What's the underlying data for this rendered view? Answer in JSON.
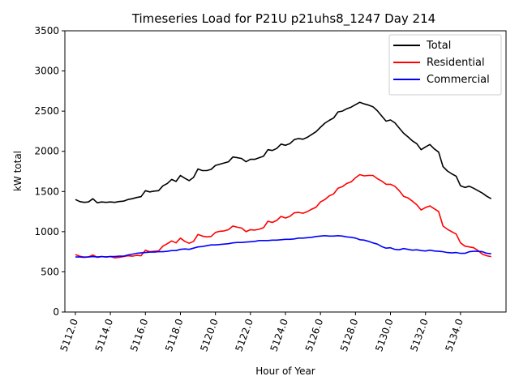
{
  "chart_data": {
    "type": "line",
    "title": "Timeseries Load for P21U p21uhs8_1247  Day 214",
    "xlabel": "Hour of Year",
    "ylabel": "kW total",
    "xlim": [
      5111.4,
      5136.6
    ],
    "ylim": [
      0,
      3500
    ],
    "xticks": [
      5112,
      5114,
      5116,
      5118,
      5120,
      5122,
      5124,
      5126,
      5128,
      5130,
      5132,
      5134
    ],
    "xtick_labels": [
      "5112.0",
      "5114.0",
      "5116.0",
      "5118.0",
      "5120.0",
      "5122.0",
      "5124.0",
      "5126.0",
      "5128.0",
      "5130.0",
      "5132.0",
      "5134.0"
    ],
    "yticks": [
      0,
      500,
      1000,
      1500,
      2000,
      2500,
      3000,
      3500
    ],
    "ytick_labels": [
      "0",
      "500",
      "1000",
      "1500",
      "2000",
      "2500",
      "3000",
      "3500"
    ],
    "grid": false,
    "legend_position": "top-right",
    "series": [
      {
        "name": "Total",
        "color": "#000000",
        "x": [
          5112.0,
          5112.25,
          5112.5,
          5112.75,
          5113.0,
          5113.25,
          5113.5,
          5113.75,
          5114.0,
          5114.25,
          5114.5,
          5114.75,
          5115.0,
          5115.25,
          5115.5,
          5115.75,
          5116.0,
          5116.25,
          5116.5,
          5116.75,
          5117.0,
          5117.25,
          5117.5,
          5117.75,
          5118.0,
          5118.25,
          5118.5,
          5118.75,
          5119.0,
          5119.25,
          5119.5,
          5119.75,
          5120.0,
          5120.25,
          5120.5,
          5120.75,
          5121.0,
          5121.25,
          5121.5,
          5121.75,
          5122.0,
          5122.25,
          5122.5,
          5122.75,
          5123.0,
          5123.25,
          5123.5,
          5123.75,
          5124.0,
          5124.25,
          5124.5,
          5124.75,
          5125.0,
          5125.25,
          5125.5,
          5125.75,
          5126.0,
          5126.25,
          5126.5,
          5126.75,
          5127.0,
          5127.25,
          5127.5,
          5127.75,
          5128.0,
          5128.25,
          5128.5,
          5128.75,
          5129.0,
          5129.25,
          5129.5,
          5129.75,
          5130.0,
          5130.25,
          5130.5,
          5130.75,
          5131.0,
          5131.25,
          5131.5,
          5131.75,
          5132.0,
          5132.25,
          5132.5,
          5132.75,
          5133.0,
          5133.25,
          5133.5,
          5133.75,
          5134.0,
          5134.25,
          5134.5,
          5134.75,
          5135.0,
          5135.25,
          5135.5,
          5135.75
        ],
        "values": [
          1400,
          1375,
          1365,
          1370,
          1410,
          1360,
          1370,
          1365,
          1370,
          1365,
          1375,
          1380,
          1400,
          1410,
          1425,
          1435,
          1510,
          1495,
          1505,
          1510,
          1570,
          1600,
          1650,
          1625,
          1700,
          1665,
          1635,
          1675,
          1780,
          1760,
          1760,
          1775,
          1825,
          1840,
          1855,
          1870,
          1930,
          1920,
          1910,
          1870,
          1900,
          1900,
          1920,
          1940,
          2020,
          2010,
          2035,
          2090,
          2075,
          2095,
          2145,
          2160,
          2150,
          2175,
          2210,
          2245,
          2300,
          2350,
          2385,
          2415,
          2490,
          2500,
          2530,
          2550,
          2580,
          2610,
          2590,
          2575,
          2555,
          2505,
          2440,
          2375,
          2390,
          2355,
          2290,
          2225,
          2180,
          2130,
          2095,
          2020,
          2055,
          2085,
          2030,
          1990,
          1810,
          1755,
          1720,
          1690,
          1570,
          1550,
          1565,
          1540,
          1510,
          1480,
          1440,
          1410
        ]
      },
      {
        "name": "Residential",
        "color": "#ff0000",
        "x": [
          5112.0,
          5112.25,
          5112.5,
          5112.75,
          5113.0,
          5113.25,
          5113.5,
          5113.75,
          5114.0,
          5114.25,
          5114.5,
          5114.75,
          5115.0,
          5115.25,
          5115.5,
          5115.75,
          5116.0,
          5116.25,
          5116.5,
          5116.75,
          5117.0,
          5117.25,
          5117.5,
          5117.75,
          5118.0,
          5118.25,
          5118.5,
          5118.75,
          5119.0,
          5119.25,
          5119.5,
          5119.75,
          5120.0,
          5120.25,
          5120.5,
          5120.75,
          5121.0,
          5121.25,
          5121.5,
          5121.75,
          5122.0,
          5122.25,
          5122.5,
          5122.75,
          5123.0,
          5123.25,
          5123.5,
          5123.75,
          5124.0,
          5124.25,
          5124.5,
          5124.75,
          5125.0,
          5125.25,
          5125.5,
          5125.75,
          5126.0,
          5126.25,
          5126.5,
          5126.75,
          5127.0,
          5127.25,
          5127.5,
          5127.75,
          5128.0,
          5128.25,
          5128.5,
          5128.75,
          5129.0,
          5129.25,
          5129.5,
          5129.75,
          5130.0,
          5130.25,
          5130.5,
          5130.75,
          5131.0,
          5131.25,
          5131.5,
          5131.75,
          5132.0,
          5132.25,
          5132.5,
          5132.75,
          5133.0,
          5133.25,
          5133.5,
          5133.75,
          5134.0,
          5134.25,
          5134.5,
          5134.75,
          5135.0,
          5135.25,
          5135.5,
          5135.75
        ],
        "values": [
          715,
          695,
          685,
          685,
          710,
          680,
          690,
          685,
          690,
          675,
          680,
          690,
          700,
          695,
          705,
          700,
          770,
          750,
          755,
          760,
          820,
          850,
          885,
          860,
          920,
          880,
          855,
          880,
          965,
          945,
          935,
          940,
          990,
          1005,
          1010,
          1025,
          1070,
          1055,
          1045,
          1000,
          1025,
          1020,
          1030,
          1050,
          1130,
          1115,
          1140,
          1190,
          1170,
          1190,
          1235,
          1240,
          1230,
          1250,
          1280,
          1305,
          1370,
          1400,
          1445,
          1470,
          1540,
          1560,
          1600,
          1620,
          1670,
          1710,
          1695,
          1700,
          1700,
          1660,
          1630,
          1590,
          1590,
          1565,
          1510,
          1440,
          1420,
          1380,
          1335,
          1270,
          1300,
          1320,
          1285,
          1250,
          1070,
          1030,
          1000,
          970,
          860,
          820,
          810,
          800,
          765,
          720,
          700,
          690
        ]
      },
      {
        "name": "Commercial",
        "color": "#0000ff",
        "x": [
          5112.0,
          5112.25,
          5112.5,
          5112.75,
          5113.0,
          5113.25,
          5113.5,
          5113.75,
          5114.0,
          5114.25,
          5114.5,
          5114.75,
          5115.0,
          5115.25,
          5115.5,
          5115.75,
          5116.0,
          5116.25,
          5116.5,
          5116.75,
          5117.0,
          5117.25,
          5117.5,
          5117.75,
          5118.0,
          5118.25,
          5118.5,
          5118.75,
          5119.0,
          5119.25,
          5119.5,
          5119.75,
          5120.0,
          5120.25,
          5120.5,
          5120.75,
          5121.0,
          5121.25,
          5121.5,
          5121.75,
          5122.0,
          5122.25,
          5122.5,
          5122.75,
          5123.0,
          5123.25,
          5123.5,
          5123.75,
          5124.0,
          5124.25,
          5124.5,
          5124.75,
          5125.0,
          5125.25,
          5125.5,
          5125.75,
          5126.0,
          5126.25,
          5126.5,
          5126.75,
          5127.0,
          5127.25,
          5127.5,
          5127.75,
          5128.0,
          5128.25,
          5128.5,
          5128.75,
          5129.0,
          5129.25,
          5129.5,
          5129.75,
          5130.0,
          5130.25,
          5130.5,
          5130.75,
          5131.0,
          5131.25,
          5131.5,
          5131.75,
          5132.0,
          5132.25,
          5132.5,
          5132.75,
          5133.0,
          5133.25,
          5133.5,
          5133.75,
          5134.0,
          5134.25,
          5134.5,
          5134.75,
          5135.0,
          5135.25,
          5135.5,
          5135.75
        ],
        "values": [
          685,
          685,
          680,
          685,
          690,
          685,
          690,
          685,
          690,
          690,
          695,
          695,
          710,
          720,
          730,
          735,
          740,
          745,
          745,
          750,
          750,
          755,
          765,
          765,
          780,
          785,
          780,
          795,
          810,
          815,
          825,
          835,
          835,
          840,
          845,
          850,
          860,
          865,
          865,
          870,
          875,
          880,
          890,
          890,
          890,
          895,
          895,
          900,
          905,
          905,
          910,
          920,
          920,
          925,
          930,
          940,
          945,
          950,
          945,
          945,
          950,
          945,
          935,
          930,
          920,
          900,
          895,
          880,
          860,
          845,
          815,
          795,
          800,
          780,
          775,
          790,
          780,
          770,
          775,
          765,
          760,
          770,
          760,
          755,
          750,
          740,
          735,
          740,
          730,
          730,
          750,
          755,
          755,
          750,
          730,
          725
        ]
      }
    ]
  }
}
